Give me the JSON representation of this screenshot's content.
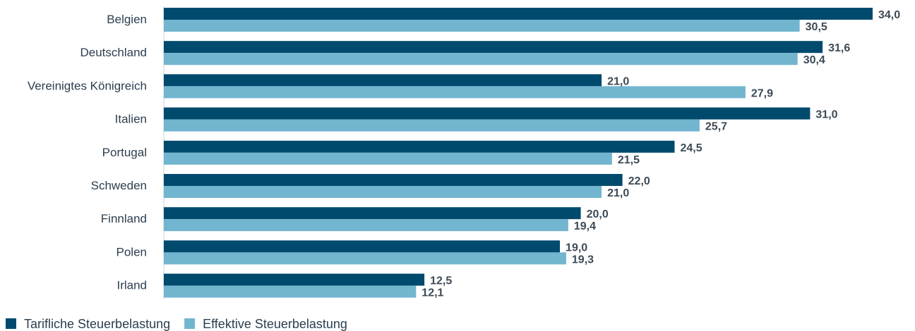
{
  "chart_data": {
    "type": "bar",
    "orientation": "horizontal",
    "categories": [
      "Belgien",
      "Deutschland",
      "Vereinigtes Königreich",
      "Italien",
      "Portugal",
      "Schweden",
      "Finnland",
      "Polen",
      "Irland"
    ],
    "series": [
      {
        "name": "Tarifliche Steuerbelastung",
        "color": "#004a6e",
        "values": [
          34.0,
          31.6,
          21.0,
          31.0,
          24.5,
          22.0,
          20.0,
          19.0,
          12.5
        ],
        "labels": [
          "34,0",
          "31,6",
          "21,0",
          "31,0",
          "24,5",
          "22,0",
          "20,0",
          "19,0",
          "12,5"
        ]
      },
      {
        "name": "Effektive Steuerbelastung",
        "color": "#72b5cf",
        "values": [
          30.5,
          30.4,
          27.9,
          25.7,
          21.5,
          21.0,
          19.4,
          19.3,
          12.1
        ],
        "labels": [
          "30,5",
          "30,4",
          "27,9",
          "25,7",
          "21,5",
          "21,0",
          "19,4",
          "19,3",
          "12,1"
        ]
      }
    ],
    "xlim": [
      0,
      34
    ],
    "grid": false,
    "legend_position": "bottom-left",
    "title": "",
    "xlabel": "",
    "ylabel": ""
  }
}
